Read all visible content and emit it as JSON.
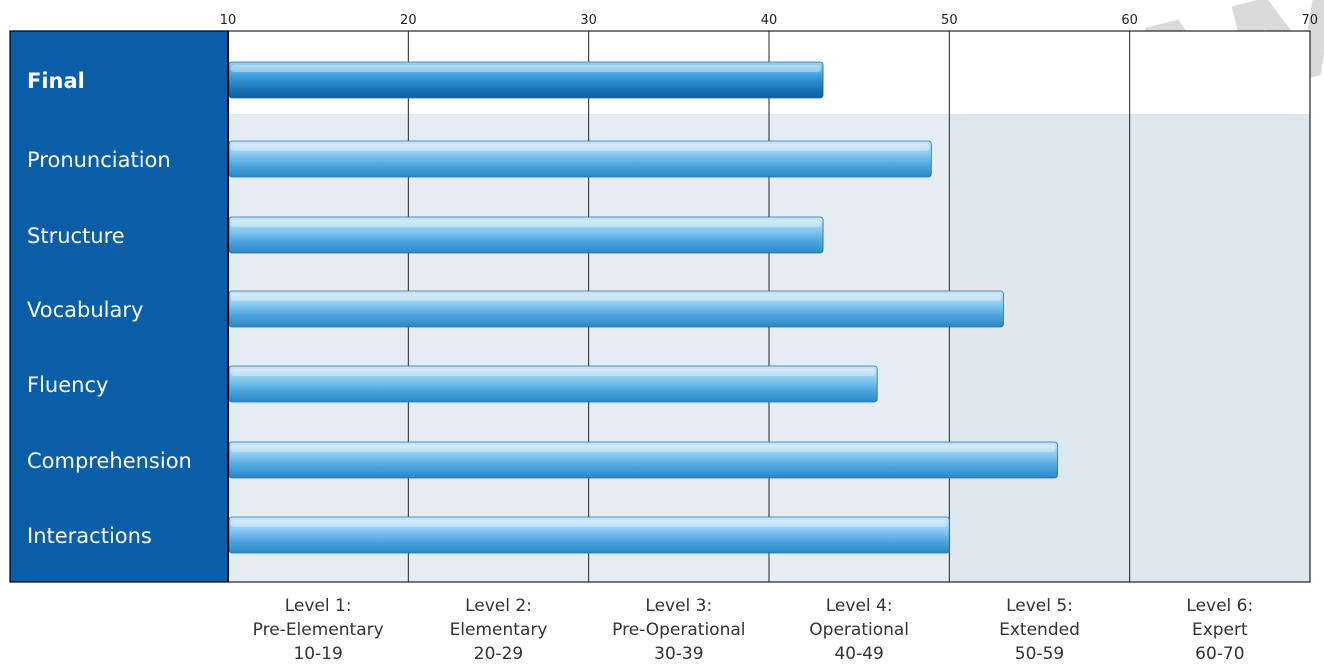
{
  "watermark_text": "SAMPLE",
  "chart_data": {
    "type": "bar",
    "orientation": "horizontal",
    "xlim": [
      10,
      70
    ],
    "xticks": [
      10,
      20,
      30,
      40,
      50,
      60,
      70
    ],
    "grid": true,
    "categories": [
      "Final",
      "Pronunciation",
      "Structure",
      "Vocabulary",
      "Fluency",
      "Comprehension",
      "Interactions"
    ],
    "values": [
      43,
      49,
      43,
      53,
      46,
      56,
      50
    ],
    "levels": [
      {
        "line1": "Level 1:",
        "line2": "Pre-Elementary",
        "line3": "10-19"
      },
      {
        "line1": "Level 2:",
        "line2": "Elementary",
        "line3": "20-29"
      },
      {
        "line1": "Level 3:",
        "line2": "Pre-Operational",
        "line3": "30-39"
      },
      {
        "line1": "Level 4:",
        "line2": "Operational",
        "line3": "40-49"
      },
      {
        "line1": "Level 5:",
        "line2": "Extended",
        "line3": "50-59"
      },
      {
        "line1": "Level 6:",
        "line2": "Expert",
        "line3": "60-70"
      }
    ],
    "colors": {
      "sidebar": "#0a5ea8",
      "bar_light": "#d6ecfa",
      "bar_mid": "#6fb7e4",
      "bar_dark": "#2f8fcf",
      "shaded_region": "#dde8f0",
      "grid": "#222222"
    }
  }
}
